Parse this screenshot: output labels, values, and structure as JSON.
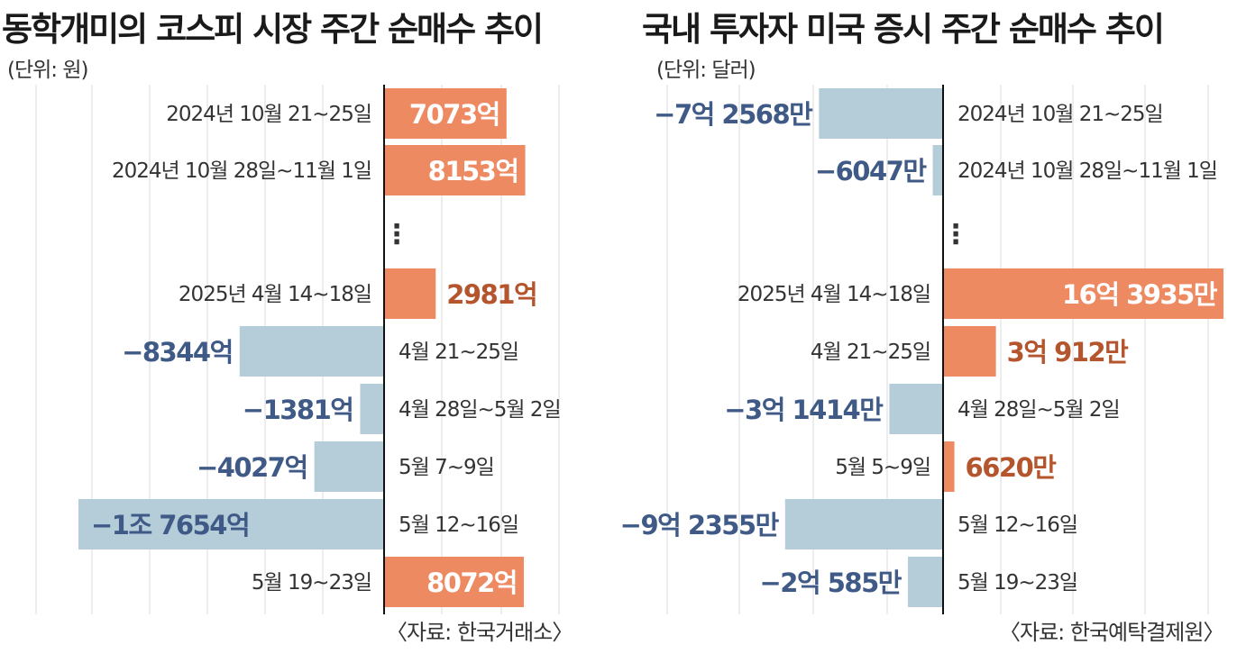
{
  "colors": {
    "positive": "#EE8A62",
    "negative": "#B5CCD9",
    "positive_text_outside": "#B5552E",
    "negative_text": "#3F5A86",
    "grid": "#EDEDED",
    "axis": "#111111"
  },
  "left": {
    "title": "동학개미의 코스피 시장 주간 순매수 추이",
    "unit": "(단위: 원)",
    "source": "〈자료: 한국거래소〉"
  },
  "right": {
    "title": "국내 투자자 미국 증시 주간 순매수 추이",
    "unit": "(단위: 달러)",
    "source": "〈자료: 한국예탁결제원〉"
  },
  "chart_data": [
    {
      "type": "bar",
      "orientation": "horizontal",
      "unit_multiplier": "억",
      "categories": [
        "2024년 10월 21~25일",
        "2024년 10월 28일~11월 1일",
        "⋮",
        "2025년 4월 14~18일",
        "4월 21~25일",
        "4월 28일~5월 2일",
        "5월 7~9일",
        "5월 12~16일",
        "5월 19~23일"
      ],
      "values": [
        7073,
        8153,
        null,
        2981,
        -8344,
        -1381,
        -4027,
        -17654,
        8072
      ],
      "data_labels": [
        "7073억",
        "8153억",
        "",
        "2981억",
        "−8344억",
        "−1381억",
        "−4027억",
        "−1조 7654억",
        "8072억"
      ],
      "xlim": [
        -17654,
        8153
      ]
    },
    {
      "type": "bar",
      "orientation": "horizontal",
      "unit_multiplier": "만",
      "categories": [
        "2024년 10월 21~25일",
        "2024년 10월 28일~11월 1일",
        "⋮",
        "2025년 4월 14~18일",
        "4월 21~25일",
        "4월 28일~5월 2일",
        "5월 5~9일",
        "5월 12~16일",
        "5월 19~23일"
      ],
      "values": [
        -72568,
        -6047,
        null,
        163935,
        30912,
        -31414,
        6620,
        -92355,
        -20585
      ],
      "data_labels": [
        "−7억 2568만",
        "−6047만",
        "",
        "16억 3935만",
        "3억 912만",
        "−3억 1414만",
        "6620만",
        "−9억 2355만",
        "−2억 585만"
      ],
      "xlim": [
        -92355,
        163935
      ]
    }
  ]
}
